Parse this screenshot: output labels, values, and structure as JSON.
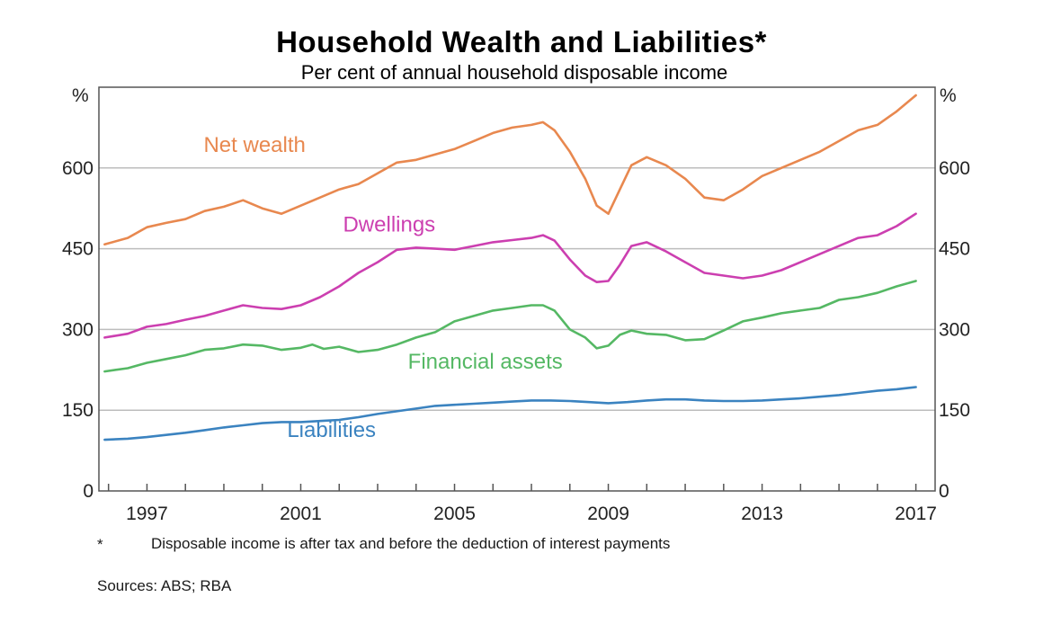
{
  "chart_data": {
    "type": "line",
    "title": "Household Wealth and Liabilities*",
    "subtitle": "Per cent of annual household disposable income",
    "ylabel_left": "%",
    "ylabel_right": "%",
    "xlim": [
      1995.75,
      2017.5
    ],
    "ylim": [
      0,
      750
    ],
    "yticks": [
      0,
      150,
      300,
      450,
      600
    ],
    "xticks": [
      1997,
      2001,
      2005,
      2009,
      2013,
      2017
    ],
    "grid": "horizontal",
    "colors": {
      "Net wealth": "#e8884f",
      "Dwellings": "#cc3fb0",
      "Financial assets": "#55b864",
      "Liabilities": "#3b83c0"
    },
    "series": [
      {
        "name": "Net wealth",
        "label_at": [
          1999.8,
          630
        ],
        "x": [
          1995.9,
          1996.5,
          1997.0,
          1997.5,
          1998.0,
          1998.5,
          1999.0,
          1999.5,
          2000.0,
          2000.5,
          2001.0,
          2001.5,
          2002.0,
          2002.5,
          2003.0,
          2003.5,
          2004.0,
          2004.5,
          2005.0,
          2005.5,
          2006.0,
          2006.5,
          2007.0,
          2007.3,
          2007.6,
          2008.0,
          2008.4,
          2008.7,
          2009.0,
          2009.3,
          2009.6,
          2010.0,
          2010.5,
          2011.0,
          2011.5,
          2012.0,
          2012.5,
          2013.0,
          2013.5,
          2014.0,
          2014.5,
          2015.0,
          2015.5,
          2016.0,
          2016.5,
          2017.0
        ],
        "values": [
          458,
          470,
          490,
          498,
          505,
          520,
          528,
          540,
          525,
          515,
          530,
          545,
          560,
          570,
          590,
          610,
          615,
          625,
          635,
          650,
          665,
          675,
          680,
          685,
          670,
          630,
          580,
          530,
          515,
          560,
          605,
          620,
          605,
          580,
          545,
          540,
          560,
          585,
          600,
          615,
          630,
          650,
          670,
          680,
          705,
          735
        ]
      },
      {
        "name": "Dwellings",
        "label_at": [
          2003.3,
          482
        ],
        "x": [
          1995.9,
          1996.5,
          1997.0,
          1997.5,
          1998.0,
          1998.5,
          1999.0,
          1999.5,
          2000.0,
          2000.5,
          2001.0,
          2001.5,
          2002.0,
          2002.5,
          2003.0,
          2003.5,
          2004.0,
          2004.5,
          2005.0,
          2005.5,
          2006.0,
          2006.5,
          2007.0,
          2007.3,
          2007.6,
          2008.0,
          2008.4,
          2008.7,
          2009.0,
          2009.3,
          2009.6,
          2010.0,
          2010.5,
          2011.0,
          2011.5,
          2012.0,
          2012.5,
          2013.0,
          2013.5,
          2014.0,
          2014.5,
          2015.0,
          2015.5,
          2016.0,
          2016.5,
          2017.0
        ],
        "values": [
          285,
          292,
          305,
          310,
          318,
          325,
          335,
          345,
          340,
          338,
          345,
          360,
          380,
          405,
          425,
          448,
          452,
          450,
          448,
          455,
          462,
          466,
          470,
          475,
          465,
          430,
          400,
          388,
          390,
          420,
          455,
          462,
          445,
          425,
          405,
          400,
          395,
          400,
          410,
          425,
          440,
          455,
          470,
          475,
          492,
          515
        ]
      },
      {
        "name": "Financial assets",
        "label_at": [
          2005.8,
          227
        ],
        "x": [
          1995.9,
          1996.5,
          1997.0,
          1997.5,
          1998.0,
          1998.5,
          1999.0,
          1999.5,
          2000.0,
          2000.5,
          2001.0,
          2001.3,
          2001.6,
          2002.0,
          2002.5,
          2003.0,
          2003.5,
          2004.0,
          2004.5,
          2005.0,
          2005.5,
          2006.0,
          2006.5,
          2007.0,
          2007.3,
          2007.6,
          2008.0,
          2008.4,
          2008.7,
          2009.0,
          2009.3,
          2009.6,
          2010.0,
          2010.5,
          2011.0,
          2011.5,
          2012.0,
          2012.5,
          2013.0,
          2013.5,
          2014.0,
          2014.5,
          2015.0,
          2015.5,
          2016.0,
          2016.5,
          2017.0
        ],
        "values": [
          222,
          228,
          238,
          245,
          252,
          262,
          265,
          272,
          270,
          262,
          266,
          272,
          264,
          268,
          258,
          262,
          272,
          285,
          295,
          315,
          325,
          335,
          340,
          345,
          345,
          335,
          300,
          285,
          265,
          270,
          290,
          298,
          292,
          290,
          280,
          282,
          298,
          315,
          322,
          330,
          335,
          340,
          355,
          360,
          368,
          380,
          390
        ]
      },
      {
        "name": "Liabilities",
        "label_at": [
          2001.8,
          100
        ],
        "x": [
          1995.9,
          1996.5,
          1997.0,
          1997.5,
          1998.0,
          1998.5,
          1999.0,
          1999.5,
          2000.0,
          2000.5,
          2001.0,
          2001.5,
          2002.0,
          2002.5,
          2003.0,
          2003.5,
          2004.0,
          2004.5,
          2005.0,
          2005.5,
          2006.0,
          2006.5,
          2007.0,
          2007.5,
          2008.0,
          2008.5,
          2009.0,
          2009.5,
          2010.0,
          2010.5,
          2011.0,
          2011.5,
          2012.0,
          2012.5,
          2013.0,
          2013.5,
          2014.0,
          2014.5,
          2015.0,
          2015.5,
          2016.0,
          2016.5,
          2017.0
        ],
        "values": [
          95,
          97,
          100,
          104,
          108,
          113,
          118,
          122,
          126,
          128,
          128,
          130,
          132,
          137,
          143,
          148,
          153,
          158,
          160,
          162,
          164,
          166,
          168,
          168,
          167,
          165,
          163,
          165,
          168,
          170,
          170,
          168,
          167,
          167,
          168,
          170,
          172,
          175,
          178,
          182,
          186,
          189,
          193
        ]
      }
    ]
  },
  "footnote": {
    "marker": "*",
    "text": "Disposable income is after tax and before the deduction of interest payments"
  },
  "sources": "Sources: ABS; RBA"
}
